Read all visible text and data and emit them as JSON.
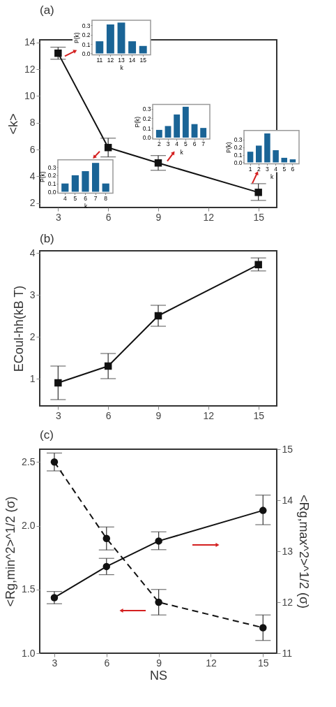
{
  "chart_data": [
    {
      "type": "line",
      "title": "(a)",
      "ylabel": "<k>",
      "x": [
        3,
        6,
        9,
        15
      ],
      "values": [
        13.2,
        6.15,
        5.0,
        2.8
      ],
      "errors": [
        0.45,
        0.7,
        0.55,
        [
          2.2,
          3.45
        ]
      ],
      "color": "#111111",
      "marker": "square",
      "line_style": "solid",
      "xlim": [
        1.9,
        16.1
      ],
      "ylim": [
        1.67,
        14.2
      ],
      "xticks": [
        3,
        6,
        9,
        12,
        15
      ],
      "yticks": [
        2,
        4,
        6,
        8,
        10,
        12,
        14
      ]
    },
    {
      "type": "bar",
      "xlabel": "k",
      "ylabel": "P(k)",
      "categories": [
        "11",
        "12",
        "13",
        "14",
        "15"
      ],
      "values": [
        0.13,
        0.31,
        0.33,
        0.13,
        0.08
      ],
      "color": "#1a6496",
      "ylim": [
        0,
        0.34
      ],
      "yticks": [
        {
          "value": 0,
          "label": "0.0"
        },
        {
          "value": 0.1,
          "label": "0.1"
        },
        {
          "value": 0.2,
          "label": "0.2"
        },
        {
          "value": 0.3,
          "label": "0.3"
        }
      ]
    },
    {
      "type": "bar",
      "xlabel": "k",
      "ylabel": "P(k)",
      "categories": [
        "4",
        "5",
        "6",
        "7",
        "8"
      ],
      "values": [
        0.1,
        0.2,
        0.25,
        0.35,
        0.1
      ],
      "color": "#1a6496",
      "ylim": [
        0,
        0.37
      ],
      "yticks": [
        {
          "value": 0,
          "label": "0.0"
        },
        {
          "value": 0.1,
          "label": "0.1"
        },
        {
          "value": 0.2,
          "label": "0.2"
        },
        {
          "value": 0.3,
          "label": "0.3"
        }
      ]
    },
    {
      "type": "bar",
      "xlabel": "k",
      "ylabel": "P(k)",
      "categories": [
        "2",
        "3",
        "4",
        "5",
        "6",
        "7"
      ],
      "values": [
        0.08,
        0.12,
        0.24,
        0.32,
        0.14,
        0.1
      ],
      "color": "#1a6496",
      "ylim": [
        0,
        0.33
      ],
      "yticks": [
        {
          "value": 0,
          "label": "0.0"
        },
        {
          "value": 0.1,
          "label": "0.1"
        },
        {
          "value": 0.2,
          "label": "0.2"
        },
        {
          "value": 0.3,
          "label": "0.3"
        }
      ]
    },
    {
      "type": "bar",
      "xlabel": "k",
      "ylabel": "P(k)",
      "categories": [
        "1",
        "2",
        "3",
        "4",
        "5",
        "6"
      ],
      "values": [
        0.14,
        0.22,
        0.38,
        0.16,
        0.06,
        0.04
      ],
      "color": "#1a6496",
      "ylim": [
        0,
        0.4
      ],
      "yticks": [
        {
          "value": 0,
          "label": "0.0"
        },
        {
          "value": 0.1,
          "label": "0.1"
        },
        {
          "value": 0.2,
          "label": "0.2"
        },
        {
          "value": 0.3,
          "label": "0.3"
        }
      ]
    },
    {
      "type": "line",
      "title": "(b)",
      "ylabel": "ECoul-hh(kB T)",
      "x": [
        3,
        6,
        9,
        15
      ],
      "values": [
        0.9,
        1.3,
        2.5,
        3.72
      ],
      "errors": [
        [
          0.5,
          1.3
        ],
        [
          1.0,
          1.6
        ],
        [
          2.25,
          2.75
        ],
        [
          3.57,
          3.88
        ]
      ],
      "color": "#111111",
      "marker": "square",
      "line_style": "solid",
      "xlim": [
        1.9,
        16.1
      ],
      "ylim": [
        0.35,
        4.05
      ],
      "xticks": [
        3,
        6,
        9,
        12,
        15
      ],
      "yticks": [
        1,
        2,
        3,
        4
      ]
    },
    {
      "type": "line",
      "title": "(c)",
      "xlabel": "NS",
      "ylabel": "<Rg,min^2>^1/2 (σ)",
      "y2label": "<Rg,max^2>^1/2 (σ)",
      "x": [
        3,
        6,
        9,
        15
      ],
      "marker": "circle",
      "xlim": [
        2.16,
        15.79
      ],
      "ylim": [
        1.0,
        2.6
      ],
      "y2lim": [
        11,
        15
      ],
      "xticks": [
        3,
        6,
        9,
        12,
        15
      ],
      "yticks": [
        {
          "value": 1.0,
          "label": "1.0"
        },
        {
          "value": 1.5,
          "label": "1.5"
        },
        {
          "value": 2.0,
          "label": "2.0"
        },
        {
          "value": 2.5,
          "label": "2.5"
        }
      ],
      "y2ticks": [
        11,
        12,
        13,
        14,
        15
      ],
      "series": [
        {
          "color": "#111111",
          "line_style": "dashed",
          "values": [
            2.5,
            1.9,
            1.4,
            1.2
          ],
          "errors": [
            [
              2.43,
              2.57
            ],
            [
              1.81,
              1.99
            ],
            [
              1.3,
              1.5
            ],
            [
              1.1,
              1.3
            ]
          ]
        },
        {
          "color": "#111111",
          "line_style": "solid",
          "axis": "y2",
          "values": [
            12.09,
            12.7,
            13.2,
            13.8
          ],
          "errors": [
            [
              11.97,
              12.21
            ],
            [
              12.54,
              12.86
            ],
            [
              13.03,
              13.38
            ],
            [
              13.52,
              14.1
            ]
          ]
        }
      ]
    }
  ]
}
